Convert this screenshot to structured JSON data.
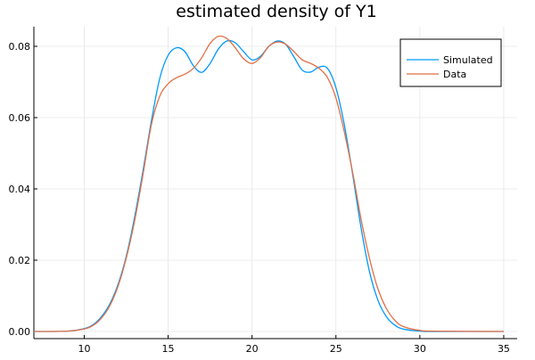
{
  "chart_data": {
    "type": "line",
    "title": "estimated density of Y1",
    "xlabel": "",
    "ylabel": "",
    "xlim": [
      7,
      35.8
    ],
    "ylim": [
      -0.002,
      0.0855
    ],
    "x_ticks": [
      10,
      15,
      20,
      25,
      30,
      35
    ],
    "y_ticks": [
      0.0,
      0.02,
      0.04,
      0.06,
      0.08
    ],
    "y_tick_labels": [
      "0.00",
      "0.02",
      "0.04",
      "0.06",
      "0.08"
    ],
    "grid": true,
    "legend": "top-right",
    "series": [
      {
        "name": "Simulated",
        "color": "#009AFA",
        "points": [
          [
            7,
            0
          ],
          [
            9,
            0.0001
          ],
          [
            10,
            0.0008
          ],
          [
            10.5,
            0.0018
          ],
          [
            11,
            0.004
          ],
          [
            11.5,
            0.0075
          ],
          [
            12,
            0.013
          ],
          [
            12.5,
            0.021
          ],
          [
            13,
            0.032
          ],
          [
            13.5,
            0.045
          ],
          [
            14,
            0.059
          ],
          [
            14.5,
            0.071
          ],
          [
            15,
            0.0775
          ],
          [
            15.5,
            0.0796
          ],
          [
            16,
            0.0785
          ],
          [
            16.5,
            0.0746
          ],
          [
            17,
            0.0727
          ],
          [
            17.5,
            0.0752
          ],
          [
            18,
            0.0793
          ],
          [
            18.5,
            0.0815
          ],
          [
            19,
            0.081
          ],
          [
            19.5,
            0.0785
          ],
          [
            20,
            0.0762
          ],
          [
            20.5,
            0.0772
          ],
          [
            21,
            0.08
          ],
          [
            21.5,
            0.0815
          ],
          [
            22,
            0.0806
          ],
          [
            22.5,
            0.077
          ],
          [
            23,
            0.0733
          ],
          [
            23.5,
            0.0728
          ],
          [
            24,
            0.0742
          ],
          [
            24.5,
            0.0738
          ],
          [
            25,
            0.0684
          ],
          [
            25.5,
            0.058
          ],
          [
            26,
            0.044
          ],
          [
            26.5,
            0.029
          ],
          [
            27,
            0.0168
          ],
          [
            27.5,
            0.0088
          ],
          [
            28,
            0.0042
          ],
          [
            28.5,
            0.0018
          ],
          [
            29,
            0.0007
          ],
          [
            30,
            0.0001
          ],
          [
            31,
            0
          ],
          [
            35,
            0
          ]
        ]
      },
      {
        "name": "Data",
        "color": "#E26F46",
        "points": [
          [
            7,
            0
          ],
          [
            9,
            0.0001
          ],
          [
            10,
            0.0007
          ],
          [
            10.5,
            0.0016
          ],
          [
            11,
            0.0036
          ],
          [
            11.5,
            0.007
          ],
          [
            12,
            0.0125
          ],
          [
            12.5,
            0.0205
          ],
          [
            13,
            0.031
          ],
          [
            13.5,
            0.044
          ],
          [
            14,
            0.058
          ],
          [
            14.5,
            0.066
          ],
          [
            15,
            0.0695
          ],
          [
            15.5,
            0.0712
          ],
          [
            16,
            0.0722
          ],
          [
            16.5,
            0.0738
          ],
          [
            17,
            0.0768
          ],
          [
            17.5,
            0.0808
          ],
          [
            18,
            0.0828
          ],
          [
            18.5,
            0.0822
          ],
          [
            19,
            0.0796
          ],
          [
            19.5,
            0.0765
          ],
          [
            20,
            0.0752
          ],
          [
            20.5,
            0.0768
          ],
          [
            21,
            0.08
          ],
          [
            21.5,
            0.0812
          ],
          [
            22,
            0.0806
          ],
          [
            22.5,
            0.0785
          ],
          [
            23,
            0.0762
          ],
          [
            23.5,
            0.0752
          ],
          [
            24,
            0.0738
          ],
          [
            24.5,
            0.0712
          ],
          [
            25,
            0.0655
          ],
          [
            25.5,
            0.056
          ],
          [
            26,
            0.0445
          ],
          [
            26.5,
            0.0315
          ],
          [
            27,
            0.0205
          ],
          [
            27.5,
            0.012
          ],
          [
            28,
            0.0065
          ],
          [
            28.5,
            0.0032
          ],
          [
            29,
            0.0014
          ],
          [
            30,
            0.0003
          ],
          [
            31,
            0.0001
          ],
          [
            35,
            0
          ]
        ]
      }
    ]
  }
}
